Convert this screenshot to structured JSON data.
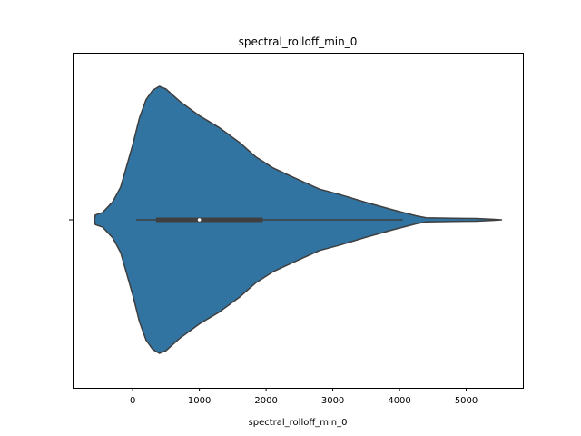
{
  "chart_data": {
    "type": "violin",
    "title": "spectral_rolloff_min_0",
    "xlabel": "spectral_rolloff_min_0",
    "ylabel": "",
    "xlim": [
      -900,
      5850
    ],
    "xticks": [
      0,
      1000,
      2000,
      3000,
      4000,
      5000
    ],
    "grid": false,
    "fill_color": "#3274a1",
    "edge_color": "#3f3f3f",
    "density": [
      {
        "x": -570,
        "h": 0.0
      },
      {
        "x": -560,
        "h": 0.036
      },
      {
        "x": -450,
        "h": 0.055
      },
      {
        "x": -300,
        "h": 0.134
      },
      {
        "x": -180,
        "h": 0.245
      },
      {
        "x": 0,
        "h": 0.56
      },
      {
        "x": 100,
        "h": 0.76
      },
      {
        "x": 200,
        "h": 0.9
      },
      {
        "x": 300,
        "h": 0.97
      },
      {
        "x": 400,
        "h": 1.0
      },
      {
        "x": 500,
        "h": 0.98
      },
      {
        "x": 700,
        "h": 0.89
      },
      {
        "x": 1000,
        "h": 0.78
      },
      {
        "x": 1300,
        "h": 0.69
      },
      {
        "x": 1600,
        "h": 0.58
      },
      {
        "x": 1850,
        "h": 0.47
      },
      {
        "x": 2100,
        "h": 0.39
      },
      {
        "x": 2400,
        "h": 0.32
      },
      {
        "x": 2800,
        "h": 0.23
      },
      {
        "x": 3100,
        "h": 0.19
      },
      {
        "x": 3500,
        "h": 0.13
      },
      {
        "x": 3900,
        "h": 0.075
      },
      {
        "x": 4250,
        "h": 0.03
      },
      {
        "x": 4400,
        "h": 0.015
      },
      {
        "x": 4800,
        "h": 0.012
      },
      {
        "x": 5150,
        "h": 0.01
      },
      {
        "x": 5400,
        "h": 0.004
      },
      {
        "x": 5530,
        "h": 0.0
      }
    ],
    "box": {
      "whisker_low": 50,
      "q1": 350,
      "median": 1000,
      "q3": 1950,
      "whisker_high": 4050
    }
  }
}
